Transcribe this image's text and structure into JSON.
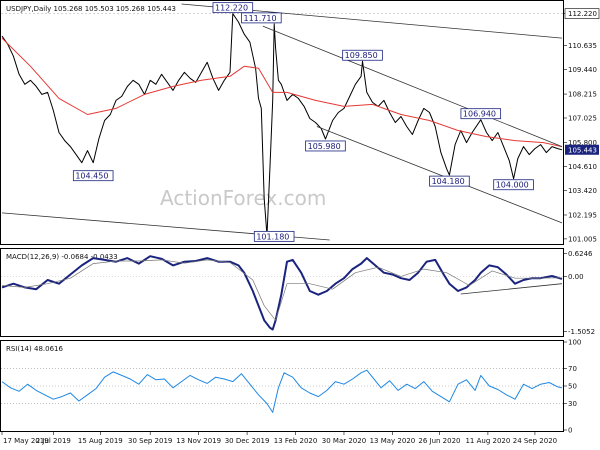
{
  "header": {
    "price_title": "USDJPY,Daily",
    "ohlc": "105.268 105.503 105.268 105.443",
    "macd_title": "MACD(12,26,9)",
    "macd_values": "-0.0684 -0.0433",
    "rsi_title": "RSI(14)",
    "rsi_value": "48.0616"
  },
  "watermark": "ActionForex.com",
  "colors": {
    "price": "#000000",
    "ma": "#e53935",
    "trendline": "#333333",
    "macd": "#1a237e",
    "signal": "#777777",
    "rsi": "#1e88e5",
    "label_box": "#1a237e",
    "last_price_bg": "#1a237e"
  },
  "chart_data": [
    {
      "type": "line",
      "panel": "price",
      "x_tick_labels": [
        "17 May 2019",
        "2 Jul 2019",
        "15 Aug 2019",
        "30 Sep 2019",
        "13 Nov 2019",
        "30 Dec 2019",
        "13 Feb 2020",
        "30 Mar 2020",
        "13 May 2020",
        "26 Jun 2020",
        "11 Aug 2020",
        "24 Sep 2020"
      ],
      "y_tick_labels": [
        "112.220",
        "110.635",
        "109.440",
        "108.215",
        "107.025",
        "105.800",
        "104.610",
        "103.420",
        "102.195",
        "101.005"
      ],
      "last_price": "105.443",
      "ylim": [
        100.8,
        112.8
      ],
      "annotations": [
        {
          "text": "112.220",
          "x": 162,
          "y": 112.22
        },
        {
          "text": "111.710",
          "x": 182,
          "y": 111.71
        },
        {
          "text": "109.850",
          "x": 253,
          "y": 109.85
        },
        {
          "text": "106.940",
          "x": 336,
          "y": 106.94
        },
        {
          "text": "105.980",
          "x": 227,
          "y": 105.98
        },
        {
          "text": "104.450",
          "x": 64,
          "y": 104.45
        },
        {
          "text": "104.180",
          "x": 314,
          "y": 104.18
        },
        {
          "text": "104.000",
          "x": 359,
          "y": 104.0
        },
        {
          "text": "101.180",
          "x": 191,
          "y": 101.18
        }
      ],
      "series": [
        {
          "role": "price",
          "x": [
            0,
            4,
            8,
            12,
            16,
            20,
            24,
            28,
            32,
            36,
            40,
            44,
            48,
            52,
            56,
            60,
            64,
            68,
            72,
            76,
            80,
            84,
            88,
            92,
            96,
            100,
            104,
            108,
            112,
            116,
            120,
            124,
            128,
            132,
            136,
            140,
            144,
            148,
            152,
            156,
            160,
            162,
            166,
            170,
            174,
            178,
            180,
            182,
            184,
            186,
            188,
            190,
            191,
            192,
            194,
            196,
            200,
            204,
            208,
            212,
            216,
            220,
            224,
            227,
            232,
            236,
            240,
            244,
            248,
            252,
            253,
            256,
            260,
            264,
            268,
            272,
            276,
            280,
            284,
            288,
            292,
            296,
            300,
            304,
            308,
            312,
            314,
            318,
            322,
            326,
            330,
            336,
            340,
            344,
            348,
            352,
            356,
            359,
            362,
            366,
            370,
            374,
            378,
            382,
            386,
            390,
            393
          ],
          "values": [
            111.1,
            110.7,
            110.1,
            109.2,
            108.7,
            108.9,
            108.6,
            108.2,
            108.3,
            107.4,
            106.3,
            105.9,
            105.6,
            105.2,
            104.8,
            105.4,
            104.8,
            106.0,
            106.9,
            107.2,
            107.9,
            108.1,
            108.6,
            108.9,
            108.7,
            108.2,
            108.9,
            108.7,
            109.2,
            108.8,
            108.4,
            108.9,
            109.3,
            109.0,
            108.8,
            109.3,
            109.8,
            109.0,
            108.4,
            108.9,
            109.3,
            112.22,
            111.8,
            111.2,
            110.8,
            109.5,
            108.0,
            107.5,
            103.0,
            101.18,
            104.5,
            107.9,
            111.71,
            110.5,
            108.9,
            108.7,
            107.9,
            108.2,
            108.0,
            107.6,
            107.0,
            106.8,
            106.5,
            105.98,
            106.9,
            107.3,
            107.5,
            108.1,
            108.7,
            109.1,
            109.85,
            108.3,
            107.8,
            107.6,
            107.9,
            107.3,
            106.8,
            107.1,
            106.6,
            106.2,
            106.9,
            107.5,
            107.3,
            106.6,
            105.3,
            104.5,
            104.18,
            105.7,
            106.4,
            105.8,
            106.3,
            106.94,
            106.3,
            105.9,
            106.3,
            105.6,
            104.9,
            104.0,
            105.0,
            105.6,
            105.2,
            105.5,
            105.7,
            105.3,
            105.6,
            105.5,
            105.44
          ]
        },
        {
          "role": "moving-average",
          "x": [
            0,
            20,
            40,
            60,
            80,
            100,
            120,
            140,
            160,
            170,
            180,
            190,
            200,
            220,
            240,
            260,
            280,
            300,
            320,
            340,
            360,
            380,
            393
          ],
          "values": [
            111.0,
            109.6,
            108.0,
            107.2,
            107.5,
            108.2,
            108.6,
            108.9,
            109.1,
            109.6,
            109.5,
            108.3,
            108.3,
            107.9,
            107.6,
            107.7,
            107.2,
            106.9,
            106.4,
            106.1,
            105.9,
            105.8,
            105.6
          ]
        },
        {
          "role": "trendline",
          "x": [
            126,
            393
          ],
          "values": [
            112.7,
            111.0
          ]
        },
        {
          "role": "trendline",
          "x": [
            0,
            230
          ],
          "values": [
            102.3,
            100.95
          ]
        },
        {
          "role": "trendline",
          "x": [
            183,
            393
          ],
          "values": [
            111.6,
            105.6
          ]
        },
        {
          "role": "trendline",
          "x": [
            221,
            393
          ],
          "values": [
            106.6,
            101.8
          ]
        }
      ]
    },
    {
      "type": "line",
      "panel": "macd",
      "y_tick_labels": [
        "0.6246",
        "0.00",
        "-1.5052"
      ],
      "ylim": [
        -1.6,
        0.72
      ],
      "series": [
        {
          "role": "macd",
          "x": [
            0,
            8,
            16,
            24,
            32,
            40,
            48,
            56,
            64,
            72,
            80,
            88,
            96,
            104,
            112,
            120,
            128,
            136,
            144,
            152,
            160,
            166,
            170,
            176,
            180,
            184,
            188,
            190,
            192,
            196,
            200,
            204,
            210,
            216,
            222,
            228,
            234,
            240,
            246,
            252,
            256,
            262,
            268,
            274,
            280,
            286,
            292,
            298,
            304,
            310,
            314,
            320,
            326,
            332,
            336,
            342,
            348,
            354,
            360,
            366,
            372,
            378,
            386,
            393
          ],
          "values": [
            -0.3,
            -0.2,
            -0.3,
            -0.35,
            -0.1,
            -0.2,
            0.05,
            0.3,
            0.5,
            0.45,
            0.4,
            0.5,
            0.35,
            0.55,
            0.48,
            0.3,
            0.4,
            0.42,
            0.5,
            0.4,
            0.4,
            0.3,
            0.1,
            -0.4,
            -0.8,
            -1.2,
            -1.4,
            -1.45,
            -1.2,
            -0.5,
            0.4,
            0.45,
            0.1,
            -0.4,
            -0.5,
            -0.4,
            -0.2,
            -0.05,
            0.2,
            0.35,
            0.5,
            0.3,
            0.1,
            0.05,
            -0.05,
            -0.1,
            0.1,
            0.4,
            0.45,
            0.05,
            -0.2,
            -0.4,
            -0.3,
            -0.1,
            0.1,
            0.3,
            0.25,
            0.05,
            -0.2,
            -0.1,
            -0.05,
            -0.05,
            0.01,
            -0.07
          ]
        },
        {
          "role": "signal",
          "x": [
            0,
            16,
            32,
            48,
            64,
            80,
            96,
            112,
            128,
            144,
            160,
            176,
            184,
            192,
            200,
            216,
            232,
            248,
            264,
            280,
            296,
            312,
            328,
            344,
            360,
            376,
            393
          ],
          "values": [
            -0.25,
            -0.3,
            -0.2,
            -0.05,
            0.35,
            0.42,
            0.42,
            0.45,
            0.36,
            0.45,
            0.38,
            -0.1,
            -0.8,
            -1.2,
            -0.2,
            -0.2,
            -0.35,
            0.1,
            0.25,
            0.0,
            0.2,
            0.1,
            -0.25,
            0.15,
            -0.05,
            -0.05,
            -0.04
          ]
        },
        {
          "role": "trendline",
          "x": [
            322,
            393
          ],
          "values": [
            -0.48,
            -0.2
          ]
        }
      ]
    },
    {
      "type": "line",
      "panel": "rsi",
      "y_tick_labels": [
        "100",
        "70",
        "50",
        "30",
        "0"
      ],
      "ylim": [
        0,
        100
      ],
      "series": [
        {
          "role": "rsi",
          "x": [
            0,
            6,
            12,
            18,
            24,
            30,
            36,
            42,
            48,
            54,
            60,
            66,
            72,
            78,
            84,
            90,
            96,
            102,
            108,
            114,
            120,
            126,
            132,
            138,
            144,
            150,
            156,
            162,
            168,
            174,
            180,
            186,
            190,
            194,
            198,
            204,
            210,
            216,
            222,
            228,
            234,
            240,
            246,
            252,
            256,
            260,
            266,
            272,
            278,
            284,
            290,
            296,
            302,
            308,
            314,
            320,
            326,
            332,
            336,
            342,
            348,
            354,
            360,
            366,
            372,
            378,
            384,
            390,
            393
          ],
          "values": [
            55,
            48,
            44,
            52,
            45,
            40,
            35,
            38,
            42,
            33,
            40,
            47,
            60,
            66,
            62,
            58,
            52,
            63,
            57,
            58,
            48,
            55,
            62,
            57,
            53,
            60,
            58,
            55,
            64,
            52,
            40,
            30,
            20,
            48,
            65,
            60,
            48,
            42,
            38,
            45,
            55,
            52,
            58,
            65,
            68,
            60,
            48,
            56,
            45,
            52,
            47,
            55,
            44,
            38,
            32,
            52,
            57,
            45,
            62,
            50,
            46,
            40,
            35,
            52,
            47,
            52,
            54,
            49,
            48
          ]
        }
      ]
    }
  ]
}
